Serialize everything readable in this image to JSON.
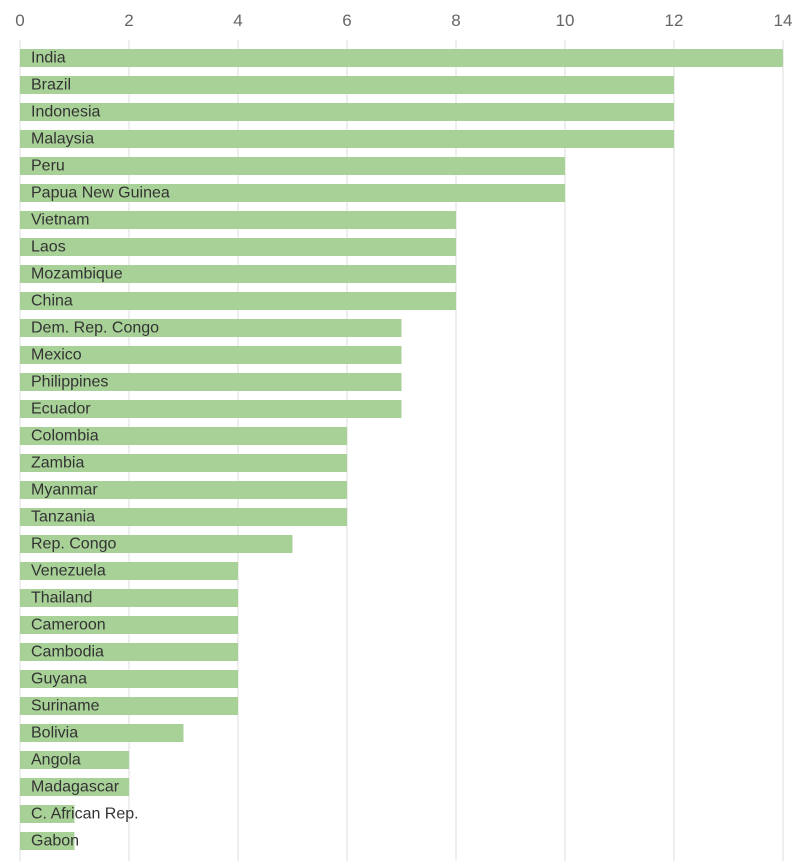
{
  "chart_data": {
    "type": "bar",
    "orientation": "horizontal",
    "title": "",
    "xlabel": "",
    "ylabel": "",
    "xlim": [
      0,
      14
    ],
    "x_ticks": [
      "0",
      "2",
      "4",
      "6",
      "8",
      "10",
      "12",
      "14"
    ],
    "grid": true,
    "bar_color": "#a8d197",
    "categories": [
      "India",
      "Brazil",
      "Indonesia",
      "Malaysia",
      "Peru",
      "Papua New Guinea",
      "Vietnam",
      "Laos",
      "Mozambique",
      "China",
      "Dem. Rep. Congo",
      "Mexico",
      "Philippines",
      "Ecuador",
      "Colombia",
      "Zambia",
      "Myanmar",
      "Tanzania",
      "Rep. Congo",
      "Venezuela",
      "Thailand",
      "Cameroon",
      "Cambodia",
      "Guyana",
      "Suriname",
      "Bolivia",
      "Angola",
      "Madagascar",
      "C. African Rep.",
      "Gabon"
    ],
    "values": [
      14,
      12,
      12,
      12,
      10,
      10,
      8,
      8,
      8,
      8,
      7,
      7,
      7,
      7,
      6,
      6,
      6,
      6,
      5,
      4,
      4,
      4,
      4,
      4,
      4,
      3,
      2,
      2,
      1,
      1
    ]
  }
}
